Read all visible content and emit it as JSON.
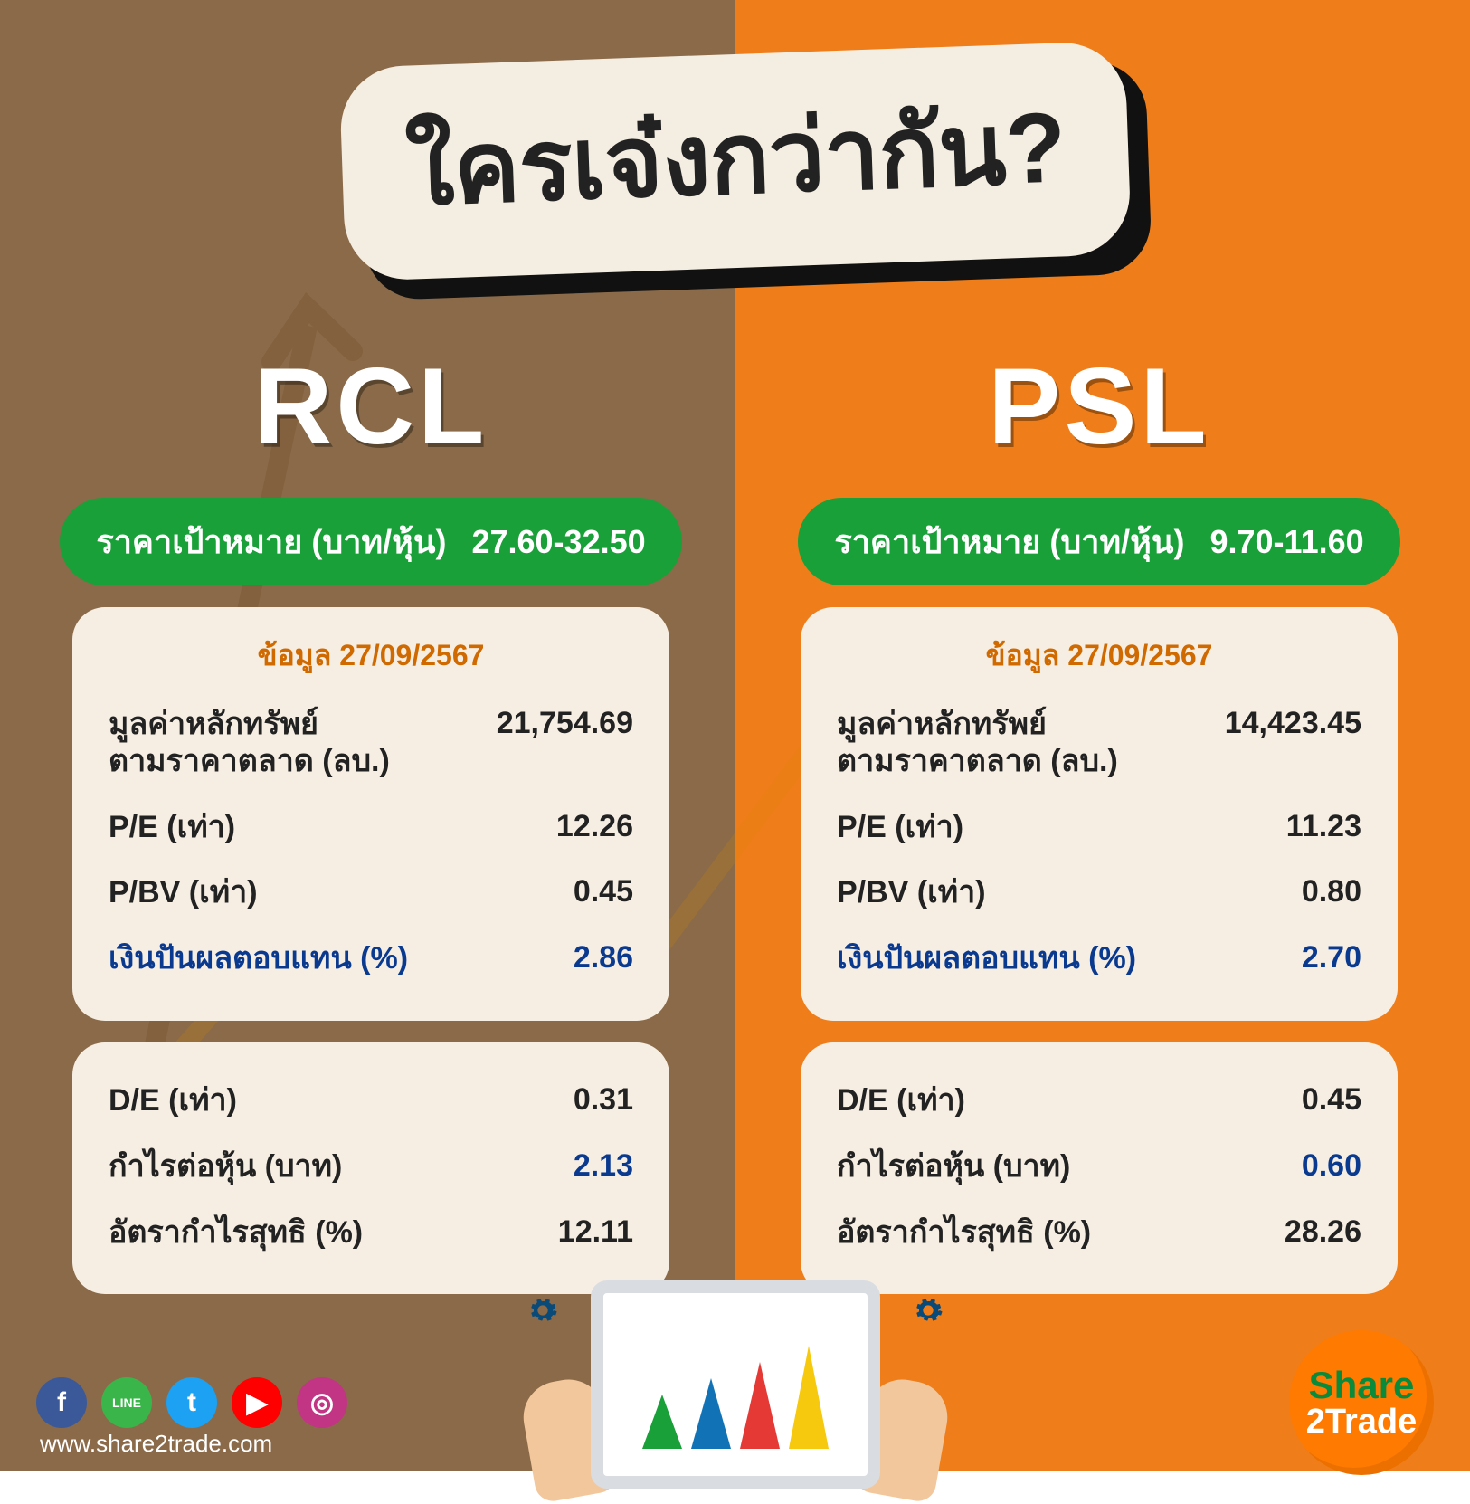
{
  "title": "ใครเจ๋งกว่ากัน?",
  "colors": {
    "left_bg": "#8a6a48",
    "right_bg": "#ef7d1a",
    "title_fill": "#f4ede2",
    "title_text": "#222222",
    "price_pill": "#1aa038",
    "card_bg": "#f6eee3",
    "accent_blue": "#0a3a8f",
    "date_orange": "#d06a00"
  },
  "price_label": "ราคาเป้าหมาย (บาท/หุ้น)",
  "date_label": "ข้อมูล 27/09/2567",
  "metrics_top": [
    {
      "label": "มูลค่าหลักทรัพย์\nตามราคาตลาด (ลบ.)",
      "multiline": true
    },
    {
      "label": "P/E (เท่า)"
    },
    {
      "label": "P/BV (เท่า)"
    },
    {
      "label": "เงินปันผลตอบแทน (%)",
      "accent": true
    }
  ],
  "metrics_bottom": [
    {
      "label": "D/E (เท่า)"
    },
    {
      "label": "กำไรต่อหุ้น (บาท)",
      "value_accent": true
    },
    {
      "label": "อัตรากำไรสุทธิ (%)"
    }
  ],
  "stocks": {
    "left": {
      "ticker": "RCL",
      "target": "27.60-32.50",
      "top_values": [
        "21,754.69",
        "12.26",
        "0.45",
        "2.86"
      ],
      "bottom_values": [
        "0.31",
        "2.13",
        "12.11"
      ]
    },
    "right": {
      "ticker": "PSL",
      "target": "9.70-11.60",
      "top_values": [
        "14,423.45",
        "11.23",
        "0.80",
        "2.70"
      ],
      "bottom_values": [
        "0.45",
        "0.60",
        "28.26"
      ]
    }
  },
  "tablet_peaks": [
    "#1aa038",
    "#1173b5",
    "#e53935",
    "#f6c90e"
  ],
  "socials": [
    {
      "name": "facebook-icon",
      "bg": "#3b5998",
      "glyph": "f"
    },
    {
      "name": "line-icon",
      "bg": "#39b54a",
      "glyph": "LINE",
      "small": true
    },
    {
      "name": "twitter-icon",
      "bg": "#1da1f2",
      "glyph": "t"
    },
    {
      "name": "youtube-icon",
      "bg": "#ff0000",
      "glyph": "▶"
    },
    {
      "name": "instagram-icon",
      "bg": "#c13584",
      "glyph": "◎"
    }
  ],
  "url": "www.share2trade.com",
  "brand": {
    "line1": "Share",
    "line2": "2Trade"
  }
}
